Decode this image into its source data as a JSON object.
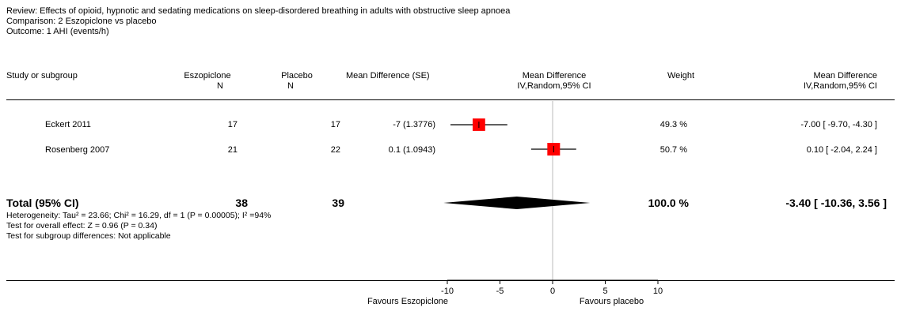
{
  "header": {
    "review": "Review:  Effects of opioid, hypnotic and sedating medications on sleep-disordered breathing in adults with obstructive sleep apnoea",
    "comparison": "Comparison:  2 Eszopiclone vs placebo",
    "outcome": "Outcome:  1 AHI (events/h)"
  },
  "columns": {
    "study": "Study or subgroup",
    "eszopiclone": "Eszopiclone",
    "eszopiclone_n": "N",
    "placebo": "Placebo",
    "placebo_n": "N",
    "md_se": "Mean Difference (SE)",
    "md_plot_title": "Mean Difference",
    "md_plot_sub": "IV,Random,95% CI",
    "weight": "Weight",
    "md_ci_title": "Mean Difference",
    "md_ci_sub": "IV,Random,95% CI"
  },
  "studies": [
    {
      "name": "Eckert 2011",
      "n_esz": "17",
      "n_pla": "17",
      "md_se": "-7 (1.3776)",
      "weight": "49.3 %",
      "ci_text": "-7.00 [ -9.70, -4.30 ]"
    },
    {
      "name": "Rosenberg 2007",
      "n_esz": "21",
      "n_pla": "22",
      "md_se": "0.1 (1.0943)",
      "weight": "50.7 %",
      "ci_text": "0.10 [ -2.04, 2.24 ]"
    }
  ],
  "total": {
    "label": "Total (95% CI)",
    "n_esz": "38",
    "n_pla": "39",
    "weight": "100.0 %",
    "ci_text": "-3.40 [ -10.36, 3.56 ]"
  },
  "notes": {
    "heterogeneity": "Heterogeneity: Tau² = 23.66; Chi² = 16.29, df = 1 (P = 0.00005); I² =94%",
    "overall": "Test for overall effect: Z = 0.96 (P = 0.34)",
    "subgroup": "Test for subgroup differences: Not applicable"
  },
  "axis": {
    "favours_left": "Favours Eszopiclone",
    "favours_right": "Favours placebo"
  },
  "chart_data": {
    "type": "forest",
    "xlim": [
      -10,
      10
    ],
    "ticks": [
      -10,
      -5,
      0,
      5,
      10
    ],
    "tick_labels": [
      "-10",
      "-5",
      "0",
      "5",
      "10"
    ],
    "studies": [
      {
        "name": "Eckert 2011",
        "md": -7.0,
        "lower": -9.7,
        "upper": -4.3,
        "weight": 49.3
      },
      {
        "name": "Rosenberg 2007",
        "md": 0.1,
        "lower": -2.04,
        "upper": 2.24,
        "weight": 50.7
      }
    ],
    "pooled": {
      "md": -3.4,
      "lower": -10.36,
      "upper": 3.56
    },
    "colors": {
      "square": "#ff0000",
      "diamond": "#000000",
      "zero_line": "#bbbbbb"
    }
  }
}
